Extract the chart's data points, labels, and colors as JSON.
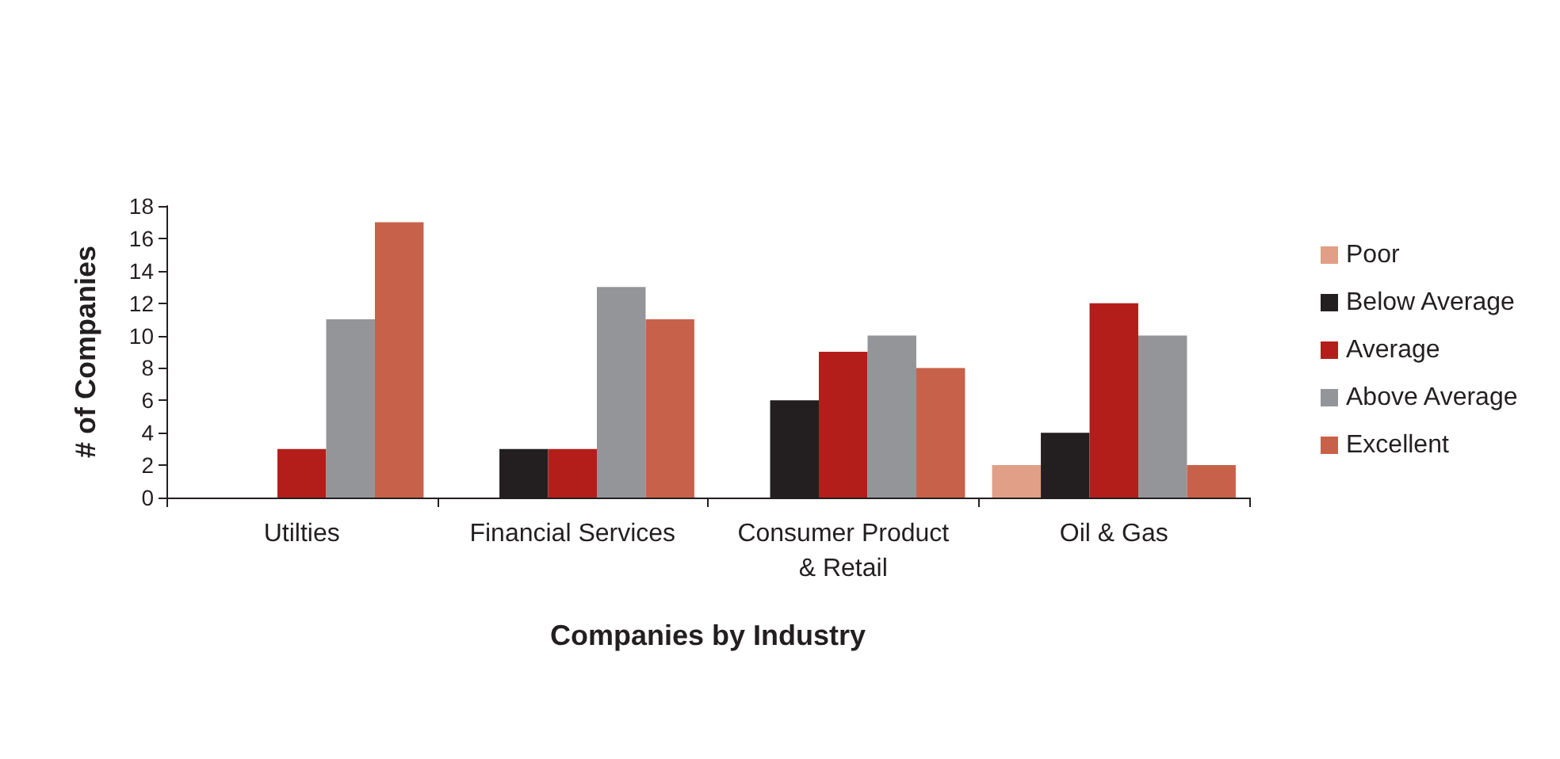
{
  "chart_data": {
    "type": "bar",
    "xlabel": "Companies by Industry",
    "ylabel": "# of Companies",
    "categories": [
      "Utilties",
      "Financial Services",
      "Consumer Product\n& Retail",
      "Oil & Gas"
    ],
    "series": [
      {
        "name": "Poor",
        "color": "#e09f86",
        "values": [
          0,
          0,
          0,
          2
        ]
      },
      {
        "name": "Below Average",
        "color": "#231f20",
        "values": [
          0,
          3,
          6,
          4
        ]
      },
      {
        "name": "Average",
        "color": "#b31e1a",
        "values": [
          3,
          3,
          9,
          12
        ]
      },
      {
        "name": "Above Average",
        "color": "#939598",
        "values": [
          11,
          13,
          10,
          10
        ]
      },
      {
        "name": "Excellent",
        "color": "#c8614a",
        "values": [
          17,
          11,
          8,
          2
        ]
      }
    ],
    "ylim": [
      0,
      18
    ],
    "yticks": [
      0,
      2,
      4,
      6,
      8,
      10,
      12,
      14,
      16,
      18
    ],
    "grid": false,
    "legend": "right"
  }
}
